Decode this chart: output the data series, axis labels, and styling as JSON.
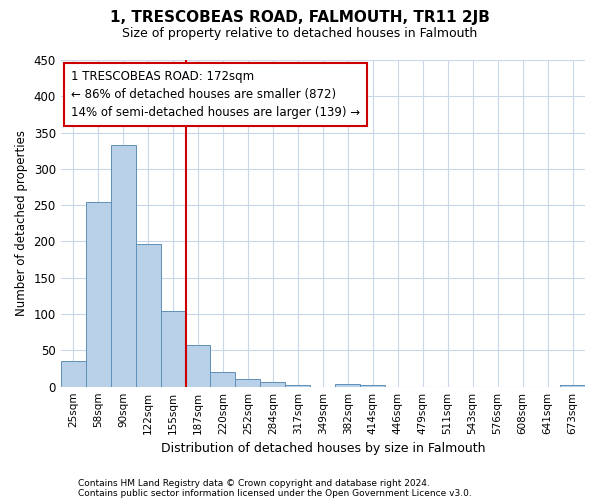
{
  "title": "1, TRESCOBEAS ROAD, FALMOUTH, TR11 2JB",
  "subtitle": "Size of property relative to detached houses in Falmouth",
  "xlabel": "Distribution of detached houses by size in Falmouth",
  "ylabel": "Number of detached properties",
  "footnote1": "Contains HM Land Registry data © Crown copyright and database right 2024.",
  "footnote2": "Contains public sector information licensed under the Open Government Licence v3.0.",
  "bar_categories": [
    "25sqm",
    "58sqm",
    "90sqm",
    "122sqm",
    "155sqm",
    "187sqm",
    "220sqm",
    "252sqm",
    "284sqm",
    "317sqm",
    "349sqm",
    "382sqm",
    "414sqm",
    "446sqm",
    "479sqm",
    "511sqm",
    "543sqm",
    "576sqm",
    "608sqm",
    "641sqm",
    "673sqm"
  ],
  "bar_values": [
    35,
    254,
    333,
    196,
    104,
    57,
    20,
    11,
    6,
    3,
    0,
    4,
    3,
    0,
    0,
    0,
    0,
    0,
    0,
    0,
    3
  ],
  "bar_color": "#b8d0e8",
  "bar_edge_color": "#6090b8",
  "vline_x": 4.5,
  "vline_color": "#cc0000",
  "annotation_line1": "1 TRESCOBEAS ROAD: 172sqm",
  "annotation_line2": "← 86% of detached houses are smaller (872)",
  "annotation_line3": "14% of semi-detached houses are larger (139) →",
  "box_edge_color": "#cc0000",
  "ylim": [
    0,
    450
  ],
  "yticks": [
    0,
    50,
    100,
    150,
    200,
    250,
    300,
    350,
    400,
    450
  ],
  "background_color": "#ffffff",
  "grid_color": "#c8d8e8"
}
